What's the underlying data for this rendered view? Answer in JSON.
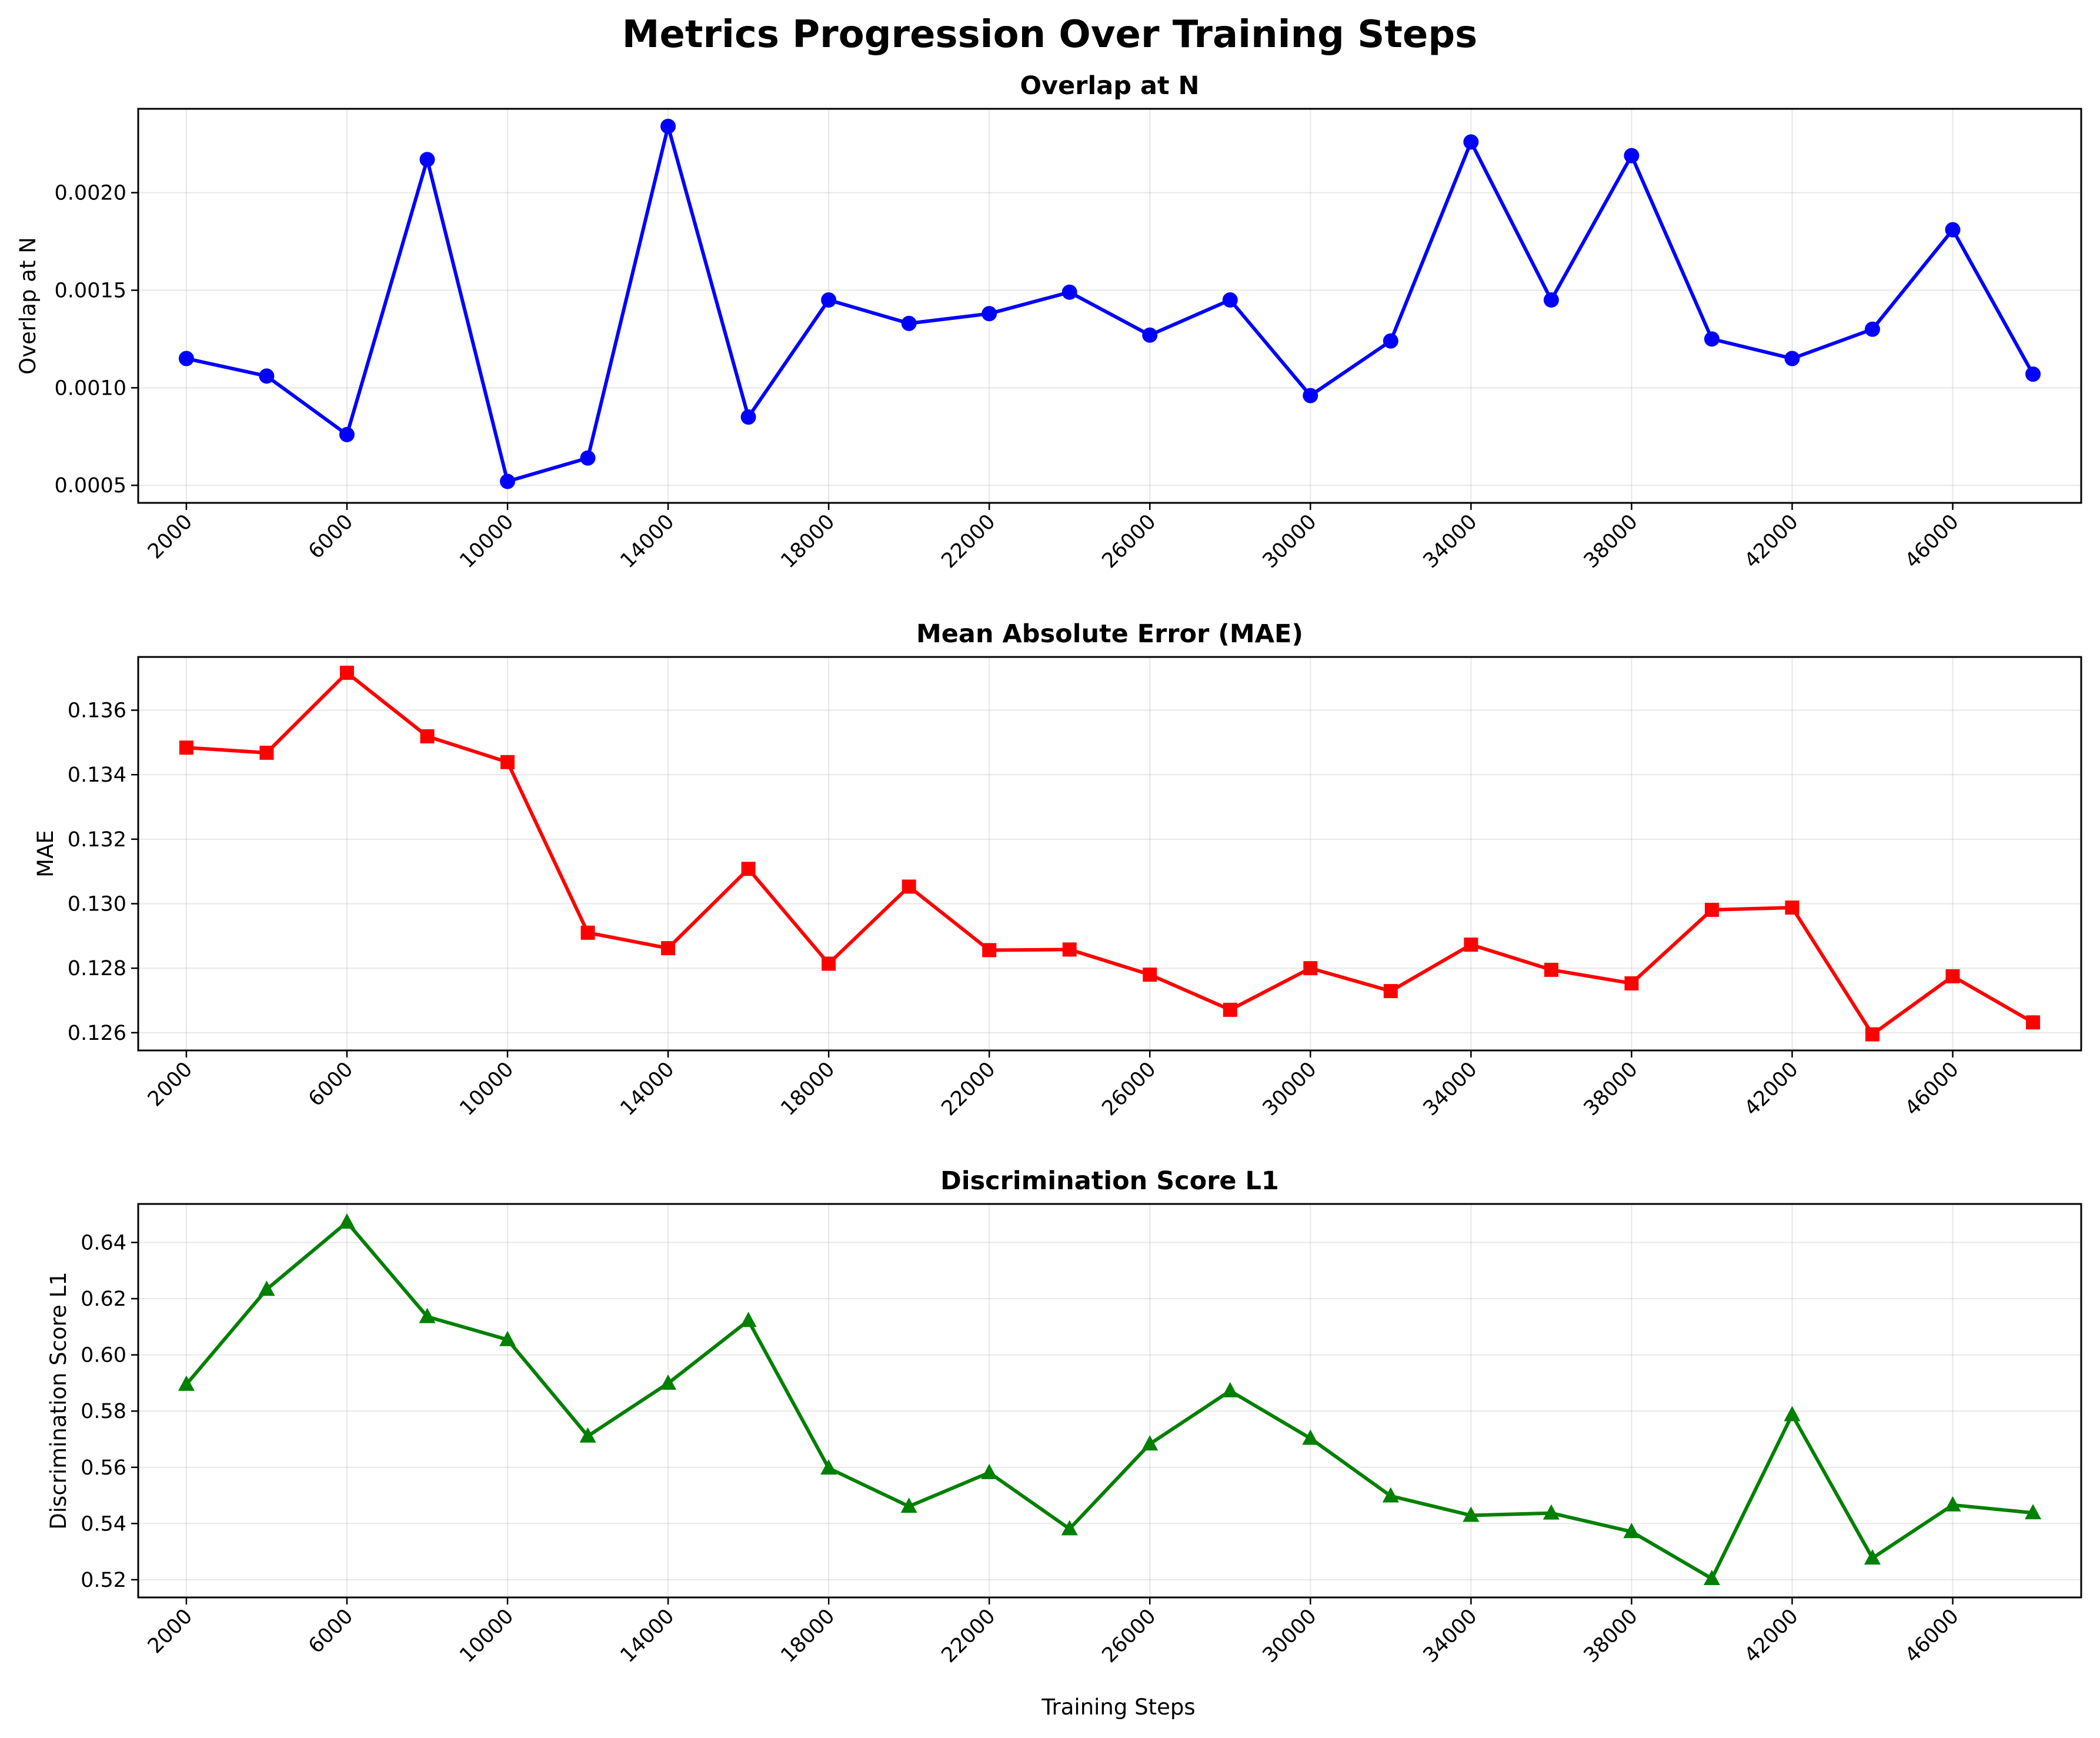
{
  "figure": {
    "title": "Metrics Progression Over Training Steps",
    "xlabel": "Training Steps"
  },
  "chart_data": [
    {
      "type": "line",
      "title": "Overlap at N",
      "ylabel": "Overlap at N",
      "xlabel": "",
      "color": "#0000ff",
      "marker": "circle",
      "grid": true,
      "xlim": [
        800,
        49200
      ],
      "ylim": [
        0.00041,
        0.00243
      ],
      "x_ticks": [
        2000,
        6000,
        10000,
        14000,
        18000,
        22000,
        26000,
        30000,
        34000,
        38000,
        42000,
        46000
      ],
      "x_tick_labels": [
        "2000",
        "6000",
        "10000",
        "14000",
        "18000",
        "22000",
        "26000",
        "30000",
        "34000",
        "38000",
        "42000",
        "46000"
      ],
      "y_ticks": [
        0.0005,
        0.001,
        0.0015,
        0.002
      ],
      "y_tick_labels": [
        "0.0005",
        "0.0010",
        "0.0015",
        "0.0020"
      ],
      "series": [
        {
          "x": [
            2000,
            4000,
            6000,
            8000,
            10000,
            12000,
            14000,
            16000,
            18000,
            20000,
            22000,
            24000,
            26000,
            28000,
            30000,
            32000,
            34000,
            36000,
            38000,
            40000,
            42000,
            44000,
            46000,
            48000
          ],
          "values": [
            0.00115,
            0.00106,
            0.00076,
            0.00217,
            0.00052,
            0.00064,
            0.00234,
            0.00085,
            0.00145,
            0.00133,
            0.00138,
            0.00149,
            0.00127,
            0.00145,
            0.00096,
            0.00124,
            0.00226,
            0.00145,
            0.00219,
            0.00125,
            0.00115,
            0.0013,
            0.00181,
            0.00107
          ]
        }
      ]
    },
    {
      "type": "line",
      "title": "Mean Absolute Error (MAE)",
      "ylabel": "MAE",
      "xlabel": "",
      "color": "#ff0000",
      "marker": "square",
      "grid": true,
      "xlim": [
        800,
        49200
      ],
      "ylim": [
        0.12545,
        0.13765
      ],
      "x_ticks": [
        2000,
        6000,
        10000,
        14000,
        18000,
        22000,
        26000,
        30000,
        34000,
        38000,
        42000,
        46000
      ],
      "x_tick_labels": [
        "2000",
        "6000",
        "10000",
        "14000",
        "18000",
        "22000",
        "26000",
        "30000",
        "34000",
        "38000",
        "42000",
        "46000"
      ],
      "y_ticks": [
        0.126,
        0.128,
        0.13,
        0.132,
        0.134,
        0.136
      ],
      "y_tick_labels": [
        "0.126",
        "0.128",
        "0.130",
        "0.132",
        "0.134",
        "0.136"
      ],
      "series": [
        {
          "x": [
            2000,
            4000,
            6000,
            8000,
            10000,
            12000,
            14000,
            16000,
            18000,
            20000,
            22000,
            24000,
            26000,
            28000,
            30000,
            32000,
            34000,
            36000,
            38000,
            40000,
            42000,
            44000,
            46000,
            48000
          ],
          "values": [
            0.13484,
            0.13468,
            0.13716,
            0.13519,
            0.13439,
            0.1291,
            0.12862,
            0.13108,
            0.12814,
            0.13053,
            0.12856,
            0.12858,
            0.1278,
            0.12671,
            0.128,
            0.12729,
            0.12873,
            0.12795,
            0.12753,
            0.12981,
            0.12988,
            0.12595,
            0.12775,
            0.12632
          ]
        }
      ]
    },
    {
      "type": "line",
      "title": "Discrimination Score L1",
      "ylabel": "Discrimination Score L1",
      "xlabel": "Training Steps",
      "color": "#008000",
      "marker": "triangle",
      "grid": true,
      "xlim": [
        800,
        49200
      ],
      "ylim": [
        0.5137,
        0.6537
      ],
      "x_ticks": [
        2000,
        6000,
        10000,
        14000,
        18000,
        22000,
        26000,
        30000,
        34000,
        38000,
        42000,
        46000
      ],
      "x_tick_labels": [
        "2000",
        "6000",
        "10000",
        "14000",
        "18000",
        "22000",
        "26000",
        "30000",
        "34000",
        "38000",
        "42000",
        "46000"
      ],
      "y_ticks": [
        0.52,
        0.54,
        0.56,
        0.58,
        0.6,
        0.62,
        0.64
      ],
      "y_tick_labels": [
        "0.52",
        "0.54",
        "0.56",
        "0.58",
        "0.60",
        "0.62",
        "0.64"
      ],
      "series": [
        {
          "x": [
            2000,
            4000,
            6000,
            8000,
            10000,
            12000,
            14000,
            16000,
            18000,
            20000,
            22000,
            24000,
            26000,
            28000,
            30000,
            32000,
            34000,
            36000,
            38000,
            40000,
            42000,
            44000,
            46000,
            48000
          ],
          "values": [
            0.5895,
            0.6233,
            0.6472,
            0.6136,
            0.6054,
            0.5711,
            0.5899,
            0.6122,
            0.5597,
            0.5461,
            0.5581,
            0.5381,
            0.5683,
            0.5872,
            0.5703,
            0.5498,
            0.5429,
            0.5437,
            0.5371,
            0.5204,
            0.5787,
            0.5277,
            0.5466,
            0.5438
          ]
        }
      ]
    }
  ]
}
